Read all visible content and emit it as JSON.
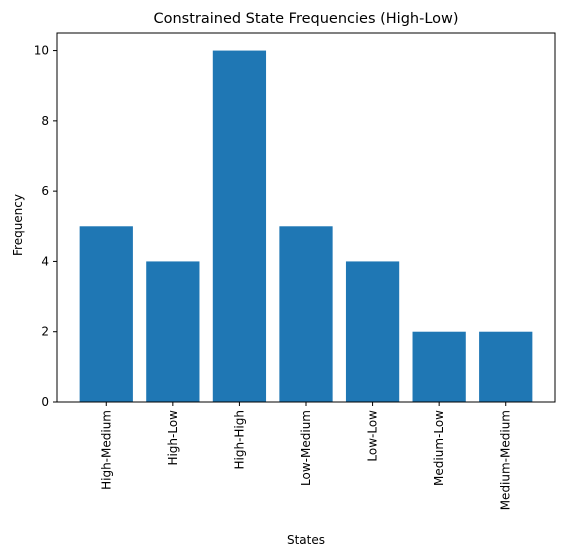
{
  "chart_data": {
    "type": "bar",
    "title": "Constrained State Frequencies (High-Low)",
    "xlabel": "States",
    "ylabel": "Frequency",
    "categories": [
      "High-Medium",
      "High-Low",
      "High-High",
      "Low-Medium",
      "Low-Low",
      "Medium-Low",
      "Medium-Medium"
    ],
    "values": [
      5,
      4,
      10,
      5,
      4,
      2,
      2
    ],
    "ylim": [
      0,
      10.5
    ],
    "yticks": [
      0,
      2,
      4,
      6,
      8,
      10
    ],
    "grid": false,
    "bar_color": "#1f77b4"
  }
}
